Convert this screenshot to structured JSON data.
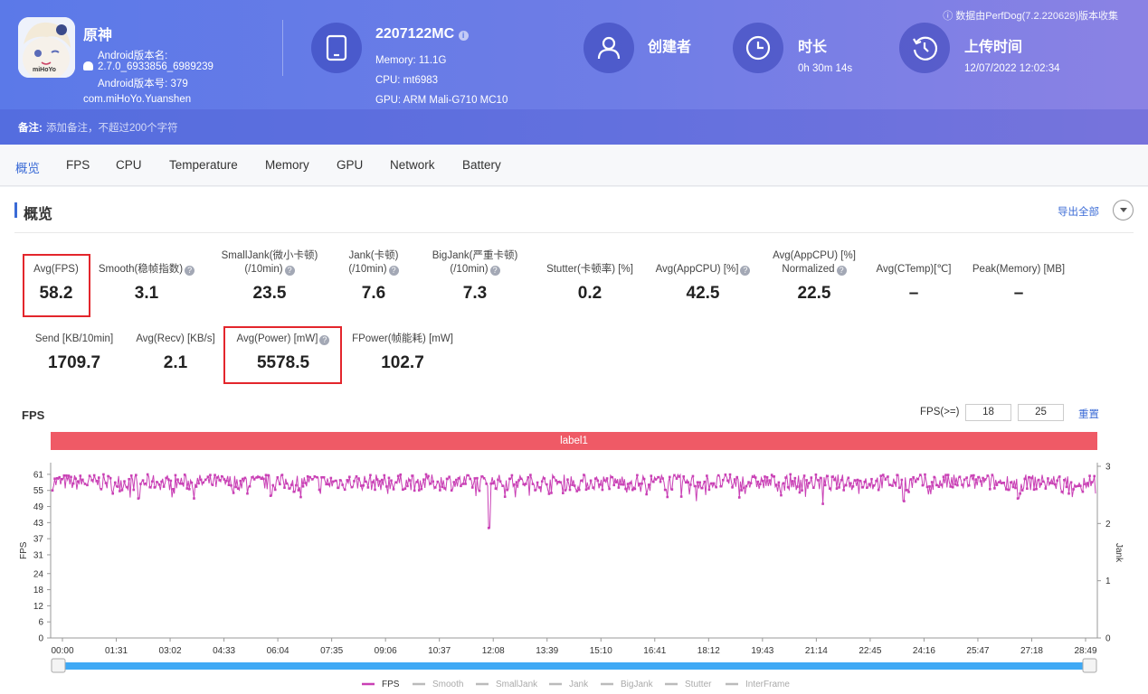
{
  "header": {
    "notice": "数据由PerfDog(7.2.220628)版本收集",
    "app": {
      "name": "原神",
      "version_name_label": "Android版本名:",
      "version_name": "2.7.0_6933856_6989239",
      "version_code": "Android版本号: 379",
      "package": "com.miHoYo.Yuanshen",
      "icon_text": "miHoYo"
    },
    "device": {
      "model": "2207122MC",
      "memory": "Memory: 11.1G",
      "cpu": "CPU: mt6983",
      "gpu": "GPU: ARM Mali-G710 MC10"
    },
    "creator": {
      "title": "创建者"
    },
    "duration": {
      "title": "时长",
      "value": "0h 30m 14s"
    },
    "upload": {
      "title": "上传时间",
      "value": "12/07/2022 12:02:34"
    },
    "remark_label": "备注:",
    "remark_placeholder": "添加备注，不超过200个字符"
  },
  "tabs": [
    "概览",
    "FPS",
    "CPU",
    "Temperature",
    "Memory",
    "GPU",
    "Network",
    "Battery"
  ],
  "overview": {
    "title": "概览",
    "export_label": "导出全部",
    "row1": [
      {
        "l1": "",
        "l2": "Avg(FPS)",
        "q": false,
        "value": "58.2"
      },
      {
        "l1": "",
        "l2": "Smooth(稳帧指数)",
        "q": true,
        "value": "3.1"
      },
      {
        "l1": "SmallJank(微小卡顿)",
        "l2": "(/10min)",
        "q": true,
        "value": "23.5"
      },
      {
        "l1": "Jank(卡顿)",
        "l2": "(/10min)",
        "q": true,
        "value": "7.6"
      },
      {
        "l1": "BigJank(严重卡顿)",
        "l2": "(/10min)",
        "q": true,
        "value": "7.3"
      },
      {
        "l1": "",
        "l2": "Stutter(卡顿率) [%]",
        "q": false,
        "value": "0.2"
      },
      {
        "l1": "",
        "l2": "Avg(AppCPU) [%]",
        "q": true,
        "value": "42.5"
      },
      {
        "l1": "Avg(AppCPU) [%]",
        "l2": "Normalized",
        "q": true,
        "value": "22.5"
      },
      {
        "l1": "",
        "l2": "Avg(CTemp)[℃]",
        "q": false,
        "value": "–"
      },
      {
        "l1": "",
        "l2": "Peak(Memory) [MB]",
        "q": false,
        "value": "–"
      }
    ],
    "row2": [
      {
        "l2": "Send [KB/10min]",
        "q": false,
        "value": "1709.7"
      },
      {
        "l2": "Avg(Recv) [KB/s]",
        "q": false,
        "value": "2.1"
      },
      {
        "l2": "Avg(Power) [mW]",
        "q": true,
        "value": "5578.5"
      },
      {
        "l2": "FPower(帧能耗) [mW]",
        "q": false,
        "value": "102.7"
      }
    ]
  },
  "fps_panel": {
    "title": "FPS",
    "threshold_label": "FPS(>=)",
    "threshold_1": "18",
    "threshold_2": "25",
    "reset_label": "重置",
    "label_bar": "label1"
  },
  "chart_data": {
    "type": "line",
    "ylabel": "FPS",
    "y2label": "Jank",
    "y_ticks": [
      0,
      6,
      12,
      18,
      24,
      31,
      37,
      43,
      49,
      55,
      61
    ],
    "y2_ticks": [
      0,
      1,
      2,
      3
    ],
    "ylim": [
      0,
      64
    ],
    "y2lim": [
      0,
      3
    ],
    "x_ticks": [
      "00:00",
      "01:31",
      "03:02",
      "04:33",
      "06:04",
      "07:35",
      "09:06",
      "10:37",
      "12:08",
      "13:39",
      "15:10",
      "16:41",
      "18:12",
      "19:43",
      "21:14",
      "22:45",
      "24:16",
      "25:47",
      "27:18",
      "28:49"
    ],
    "duration_seconds": 1814,
    "series": [
      {
        "name": "FPS",
        "color": "#c940b5",
        "baseline": 58,
        "range": [
          55,
          61
        ],
        "dips": [
          [
            150,
            52
          ],
          [
            380,
            53
          ],
          [
            760,
            41
          ],
          [
            1340,
            50
          ],
          [
            1480,
            51
          ],
          [
            1680,
            52
          ],
          [
            1790,
            55
          ],
          [
            1120,
            51
          ]
        ]
      }
    ],
    "legend": [
      "FPS",
      "Smooth",
      "SmallJank",
      "Jank",
      "BigJank",
      "Stutter",
      "InterFrame"
    ],
    "legend_position": "bottom"
  }
}
